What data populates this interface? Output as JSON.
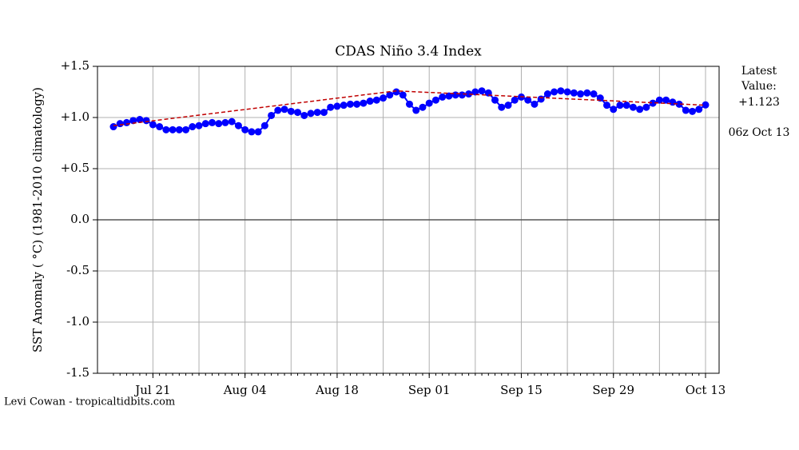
{
  "chart_data": {
    "type": "line",
    "title": "CDAS Niño 3.4 Index",
    "y_label": "SST Anomaly ( °C) (1981-2010 climatology)",
    "annotations": [
      "Latest",
      "Value:",
      "+1.123",
      "06z Oct 13"
    ],
    "credit": "Levi Cowan - tropicaltidbits.com",
    "categories": [
      null,
      null,
      null,
      null,
      null,
      null,
      "Jul 21",
      null,
      null,
      null,
      null,
      null,
      null,
      null,
      null,
      null,
      null,
      null,
      null,
      null,
      "Aug 04",
      null,
      null,
      null,
      null,
      null,
      null,
      null,
      null,
      null,
      null,
      null,
      null,
      null,
      "Aug 18",
      null,
      null,
      null,
      null,
      null,
      null,
      null,
      null,
      null,
      null,
      null,
      null,
      null,
      "Sep 01",
      null,
      null,
      null,
      null,
      null,
      null,
      null,
      null,
      null,
      null,
      null,
      null,
      null,
      "Sep 15",
      null,
      null,
      null,
      null,
      null,
      null,
      null,
      null,
      null,
      null,
      null,
      null,
      null,
      "Sep 29",
      null,
      null,
      null,
      null,
      null,
      null,
      null,
      null,
      null,
      null,
      null,
      null,
      null,
      "Oct 13"
    ],
    "series": [
      {
        "color": "#0000ff",
        "marker": true,
        "values": [
          0.91,
          0.94,
          0.95,
          0.97,
          0.98,
          0.97,
          0.93,
          0.91,
          0.88,
          0.88,
          0.88,
          0.88,
          0.91,
          0.92,
          0.94,
          0.95,
          0.94,
          0.95,
          0.96,
          0.92,
          0.88,
          0.86,
          0.86,
          0.92,
          1.02,
          1.07,
          1.08,
          1.06,
          1.05,
          1.02,
          1.04,
          1.05,
          1.05,
          1.1,
          1.11,
          1.12,
          1.13,
          1.13,
          1.14,
          1.16,
          1.17,
          1.19,
          1.22,
          1.25,
          1.22,
          1.13,
          1.07,
          1.1,
          1.14,
          1.17,
          1.2,
          1.21,
          1.22,
          1.22,
          1.23,
          1.25,
          1.26,
          1.24,
          1.17,
          1.1,
          1.12,
          1.17,
          1.2,
          1.17,
          1.13,
          1.18,
          1.23,
          1.25,
          1.26,
          1.25,
          1.24,
          1.23,
          1.24,
          1.23,
          1.19,
          1.12,
          1.08,
          1.12,
          1.12,
          1.1,
          1.08,
          1.1,
          1.14,
          1.17,
          1.17,
          1.15,
          1.13,
          1.07,
          1.06,
          1.08,
          1.123
        ]
      },
      {
        "color": "#c00000",
        "dashed": true,
        "marker": false,
        "x": [
          0,
          43,
          90
        ],
        "values": [
          0.92,
          1.26,
          1.12
        ]
      }
    ],
    "ylim": [
      -1.5,
      1.5
    ],
    "yticks": [
      {
        "value": 1.5,
        "label": "+1.5"
      },
      {
        "value": 1.0,
        "label": "+1.0"
      },
      {
        "value": 0.5,
        "label": "+0.5"
      },
      {
        "value": 0,
        "label": "0.0"
      },
      {
        "value": -0.5,
        "label": "-0.5"
      },
      {
        "value": -1.0,
        "label": "-1.0"
      },
      {
        "value": -1.5,
        "label": "-1.5"
      }
    ],
    "grid": true
  }
}
